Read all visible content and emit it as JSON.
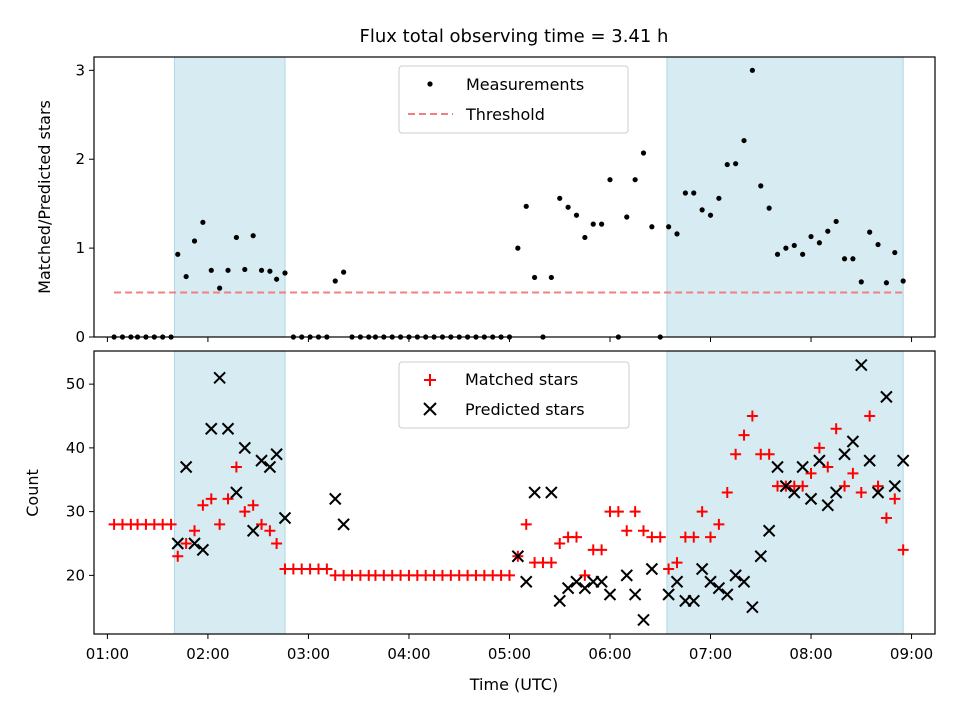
{
  "chart_data": [
    {
      "type": "scatter",
      "title": "Flux total observing time = 3.41 h",
      "xlabel": "",
      "ylabel": "Matched/Predicted stars",
      "xlim": [
        "00:52",
        "09:14"
      ],
      "ylim": [
        0,
        3.15
      ],
      "yticks": [
        0,
        1,
        2,
        3
      ],
      "legend_position": "upper center",
      "shaded_intervals": [
        [
          "01:40",
          "02:46"
        ],
        [
          "06:34",
          "08:55"
        ]
      ],
      "shade_color": "#add8e6",
      "series": [
        {
          "name": "Measurements",
          "marker": "dot",
          "color": "#000000",
          "points": [
            [
              "01:04",
              0
            ],
            [
              "01:09",
              0
            ],
            [
              "01:14",
              0
            ],
            [
              "01:18",
              0
            ],
            [
              "01:23",
              0
            ],
            [
              "01:28",
              0
            ],
            [
              "01:33",
              0
            ],
            [
              "01:38",
              0
            ],
            [
              "01:42",
              0.93
            ],
            [
              "01:47",
              0.68
            ],
            [
              "01:52",
              1.08
            ],
            [
              "01:57",
              1.29
            ],
            [
              "02:02",
              0.75
            ],
            [
              "02:07",
              0.55
            ],
            [
              "02:12",
              0.75
            ],
            [
              "02:17",
              1.12
            ],
            [
              "02:22",
              0.76
            ],
            [
              "02:27",
              1.14
            ],
            [
              "02:32",
              0.75
            ],
            [
              "02:37",
              0.74
            ],
            [
              "02:41",
              0.65
            ],
            [
              "02:46",
              0.72
            ],
            [
              "02:51",
              0
            ],
            [
              "02:56",
              0
            ],
            [
              "03:01",
              0
            ],
            [
              "03:06",
              0
            ],
            [
              "03:11",
              0
            ],
            [
              "03:16",
              0.63
            ],
            [
              "03:21",
              0.73
            ],
            [
              "03:26",
              0
            ],
            [
              "03:31",
              0
            ],
            [
              "03:36",
              0
            ],
            [
              "03:40",
              0
            ],
            [
              "03:45",
              0
            ],
            [
              "03:50",
              0
            ],
            [
              "03:55",
              0
            ],
            [
              "04:00",
              0
            ],
            [
              "04:05",
              0
            ],
            [
              "04:10",
              0
            ],
            [
              "04:15",
              0
            ],
            [
              "04:20",
              0
            ],
            [
              "04:25",
              0
            ],
            [
              "04:30",
              0
            ],
            [
              "04:35",
              0
            ],
            [
              "04:40",
              0
            ],
            [
              "04:45",
              0
            ],
            [
              "04:50",
              0
            ],
            [
              "04:55",
              0
            ],
            [
              "05:00",
              0
            ],
            [
              "05:05",
              1.0
            ],
            [
              "05:10",
              1.47
            ],
            [
              "05:15",
              0.67
            ],
            [
              "05:20",
              0
            ],
            [
              "05:25",
              0.67
            ],
            [
              "05:30",
              1.56
            ],
            [
              "05:35",
              1.46
            ],
            [
              "05:40",
              1.37
            ],
            [
              "05:45",
              1.12
            ],
            [
              "05:50",
              1.27
            ],
            [
              "05:55",
              1.27
            ],
            [
              "06:00",
              1.77
            ],
            [
              "06:05",
              0
            ],
            [
              "06:10",
              1.35
            ],
            [
              "06:15",
              1.77
            ],
            [
              "06:20",
              2.07
            ],
            [
              "06:25",
              1.24
            ],
            [
              "06:30",
              0
            ],
            [
              "06:35",
              1.24
            ],
            [
              "06:40",
              1.16
            ],
            [
              "06:45",
              1.62
            ],
            [
              "06:50",
              1.62
            ],
            [
              "06:55",
              1.43
            ],
            [
              "07:00",
              1.37
            ],
            [
              "07:05",
              1.56
            ],
            [
              "07:10",
              1.94
            ],
            [
              "07:15",
              1.95
            ],
            [
              "07:20",
              2.21
            ],
            [
              "07:25",
              3.0
            ],
            [
              "07:30",
              1.7
            ],
            [
              "07:35",
              1.45
            ],
            [
              "07:40",
              0.93
            ],
            [
              "07:45",
              1.0
            ],
            [
              "07:50",
              1.03
            ],
            [
              "07:55",
              0.93
            ],
            [
              "08:00",
              1.13
            ],
            [
              "08:05",
              1.06
            ],
            [
              "08:10",
              1.19
            ],
            [
              "08:15",
              1.3
            ],
            [
              "08:20",
              0.88
            ],
            [
              "08:25",
              0.88
            ],
            [
              "08:30",
              0.62
            ],
            [
              "08:35",
              1.18
            ],
            [
              "08:40",
              1.04
            ],
            [
              "08:45",
              0.61
            ],
            [
              "08:50",
              0.95
            ],
            [
              "08:55",
              0.63
            ]
          ]
        },
        {
          "name": "Threshold",
          "style": "dashed",
          "color": "#f08080",
          "x": [
            "01:04",
            "08:55"
          ],
          "y": [
            0.5,
            0.5
          ]
        }
      ]
    },
    {
      "type": "scatter",
      "title": "",
      "xlabel": "Time (UTC)",
      "ylabel": "Count",
      "xlim": [
        "00:52",
        "09:14"
      ],
      "ylim": [
        10.8,
        55.2
      ],
      "yticks": [
        20,
        30,
        40,
        50
      ],
      "xticks": [
        "01:00",
        "02:00",
        "03:00",
        "04:00",
        "05:00",
        "06:00",
        "07:00",
        "08:00",
        "09:00"
      ],
      "legend_position": "upper center",
      "shaded_intervals": [
        [
          "01:40",
          "02:46"
        ],
        [
          "06:34",
          "08:55"
        ]
      ],
      "shade_color": "#add8e6",
      "series": [
        {
          "name": "Matched stars",
          "marker": "plus",
          "color": "#ff0000",
          "points": [
            [
              "01:04",
              28
            ],
            [
              "01:09",
              28
            ],
            [
              "01:14",
              28
            ],
            [
              "01:18",
              28
            ],
            [
              "01:23",
              28
            ],
            [
              "01:28",
              28
            ],
            [
              "01:33",
              28
            ],
            [
              "01:38",
              28
            ],
            [
              "01:42",
              23
            ],
            [
              "01:47",
              25
            ],
            [
              "01:52",
              27
            ],
            [
              "01:57",
              31
            ],
            [
              "02:02",
              32
            ],
            [
              "02:07",
              28
            ],
            [
              "02:12",
              32
            ],
            [
              "02:17",
              37
            ],
            [
              "02:22",
              30
            ],
            [
              "02:27",
              31
            ],
            [
              "02:32",
              28
            ],
            [
              "02:37",
              27
            ],
            [
              "02:41",
              25
            ],
            [
              "02:46",
              21
            ],
            [
              "02:51",
              21
            ],
            [
              "02:56",
              21
            ],
            [
              "03:01",
              21
            ],
            [
              "03:06",
              21
            ],
            [
              "03:11",
              21
            ],
            [
              "03:16",
              20
            ],
            [
              "03:21",
              20
            ],
            [
              "03:26",
              20
            ],
            [
              "03:31",
              20
            ],
            [
              "03:36",
              20
            ],
            [
              "03:40",
              20
            ],
            [
              "03:45",
              20
            ],
            [
              "03:50",
              20
            ],
            [
              "03:55",
              20
            ],
            [
              "04:00",
              20
            ],
            [
              "04:05",
              20
            ],
            [
              "04:10",
              20
            ],
            [
              "04:15",
              20
            ],
            [
              "04:20",
              20
            ],
            [
              "04:25",
              20
            ],
            [
              "04:30",
              20
            ],
            [
              "04:35",
              20
            ],
            [
              "04:40",
              20
            ],
            [
              "04:45",
              20
            ],
            [
              "04:50",
              20
            ],
            [
              "04:55",
              20
            ],
            [
              "05:00",
              20
            ],
            [
              "05:05",
              23
            ],
            [
              "05:10",
              28
            ],
            [
              "05:15",
              22
            ],
            [
              "05:20",
              22
            ],
            [
              "05:25",
              22
            ],
            [
              "05:30",
              25
            ],
            [
              "05:35",
              26
            ],
            [
              "05:40",
              26
            ],
            [
              "05:45",
              20
            ],
            [
              "05:50",
              24
            ],
            [
              "05:55",
              24
            ],
            [
              "06:00",
              30
            ],
            [
              "06:05",
              30
            ],
            [
              "06:10",
              27
            ],
            [
              "06:15",
              30
            ],
            [
              "06:20",
              27
            ],
            [
              "06:25",
              26
            ],
            [
              "06:30",
              26
            ],
            [
              "06:35",
              21
            ],
            [
              "06:40",
              22
            ],
            [
              "06:45",
              26
            ],
            [
              "06:50",
              26
            ],
            [
              "06:55",
              30
            ],
            [
              "07:00",
              26
            ],
            [
              "07:05",
              28
            ],
            [
              "07:10",
              33
            ],
            [
              "07:15",
              39
            ],
            [
              "07:20",
              42
            ],
            [
              "07:25",
              45
            ],
            [
              "07:30",
              39
            ],
            [
              "07:35",
              39
            ],
            [
              "07:40",
              34
            ],
            [
              "07:45",
              34
            ],
            [
              "07:50",
              34
            ],
            [
              "07:55",
              34
            ],
            [
              "08:00",
              36
            ],
            [
              "08:05",
              40
            ],
            [
              "08:10",
              37
            ],
            [
              "08:15",
              43
            ],
            [
              "08:20",
              34
            ],
            [
              "08:25",
              36
            ],
            [
              "08:30",
              33
            ],
            [
              "08:35",
              45
            ],
            [
              "08:40",
              34
            ],
            [
              "08:45",
              29
            ],
            [
              "08:50",
              32
            ],
            [
              "08:55",
              24
            ]
          ]
        },
        {
          "name": "Predicted stars",
          "marker": "x",
          "color": "#000000",
          "points": [
            [
              "01:42",
              25
            ],
            [
              "01:47",
              37
            ],
            [
              "01:52",
              25
            ],
            [
              "01:57",
              24
            ],
            [
              "02:02",
              43
            ],
            [
              "02:07",
              51
            ],
            [
              "02:12",
              43
            ],
            [
              "02:17",
              33
            ],
            [
              "02:22",
              40
            ],
            [
              "02:27",
              27
            ],
            [
              "02:32",
              38
            ],
            [
              "02:37",
              37
            ],
            [
              "02:41",
              39
            ],
            [
              "02:46",
              29
            ],
            [
              "03:16",
              32
            ],
            [
              "03:21",
              28
            ],
            [
              "05:05",
              23
            ],
            [
              "05:10",
              19
            ],
            [
              "05:15",
              33
            ],
            [
              "05:25",
              33
            ],
            [
              "05:30",
              16
            ],
            [
              "05:35",
              18
            ],
            [
              "05:40",
              19
            ],
            [
              "05:45",
              18
            ],
            [
              "05:50",
              19
            ],
            [
              "05:55",
              19
            ],
            [
              "06:00",
              17
            ],
            [
              "06:10",
              20
            ],
            [
              "06:15",
              17
            ],
            [
              "06:20",
              13
            ],
            [
              "06:25",
              21
            ],
            [
              "06:35",
              17
            ],
            [
              "06:40",
              19
            ],
            [
              "06:45",
              16
            ],
            [
              "06:50",
              16
            ],
            [
              "06:55",
              21
            ],
            [
              "07:00",
              19
            ],
            [
              "07:05",
              18
            ],
            [
              "07:10",
              17
            ],
            [
              "07:15",
              20
            ],
            [
              "07:20",
              19
            ],
            [
              "07:25",
              15
            ],
            [
              "07:30",
              23
            ],
            [
              "07:35",
              27
            ],
            [
              "07:40",
              37
            ],
            [
              "07:45",
              34
            ],
            [
              "07:50",
              33
            ],
            [
              "07:55",
              37
            ],
            [
              "08:00",
              32
            ],
            [
              "08:05",
              38
            ],
            [
              "08:10",
              31
            ],
            [
              "08:15",
              33
            ],
            [
              "08:20",
              39
            ],
            [
              "08:25",
              41
            ],
            [
              "08:30",
              53
            ],
            [
              "08:35",
              38
            ],
            [
              "08:40",
              33
            ],
            [
              "08:45",
              48
            ],
            [
              "08:50",
              34
            ],
            [
              "08:55",
              38
            ]
          ]
        }
      ]
    }
  ]
}
